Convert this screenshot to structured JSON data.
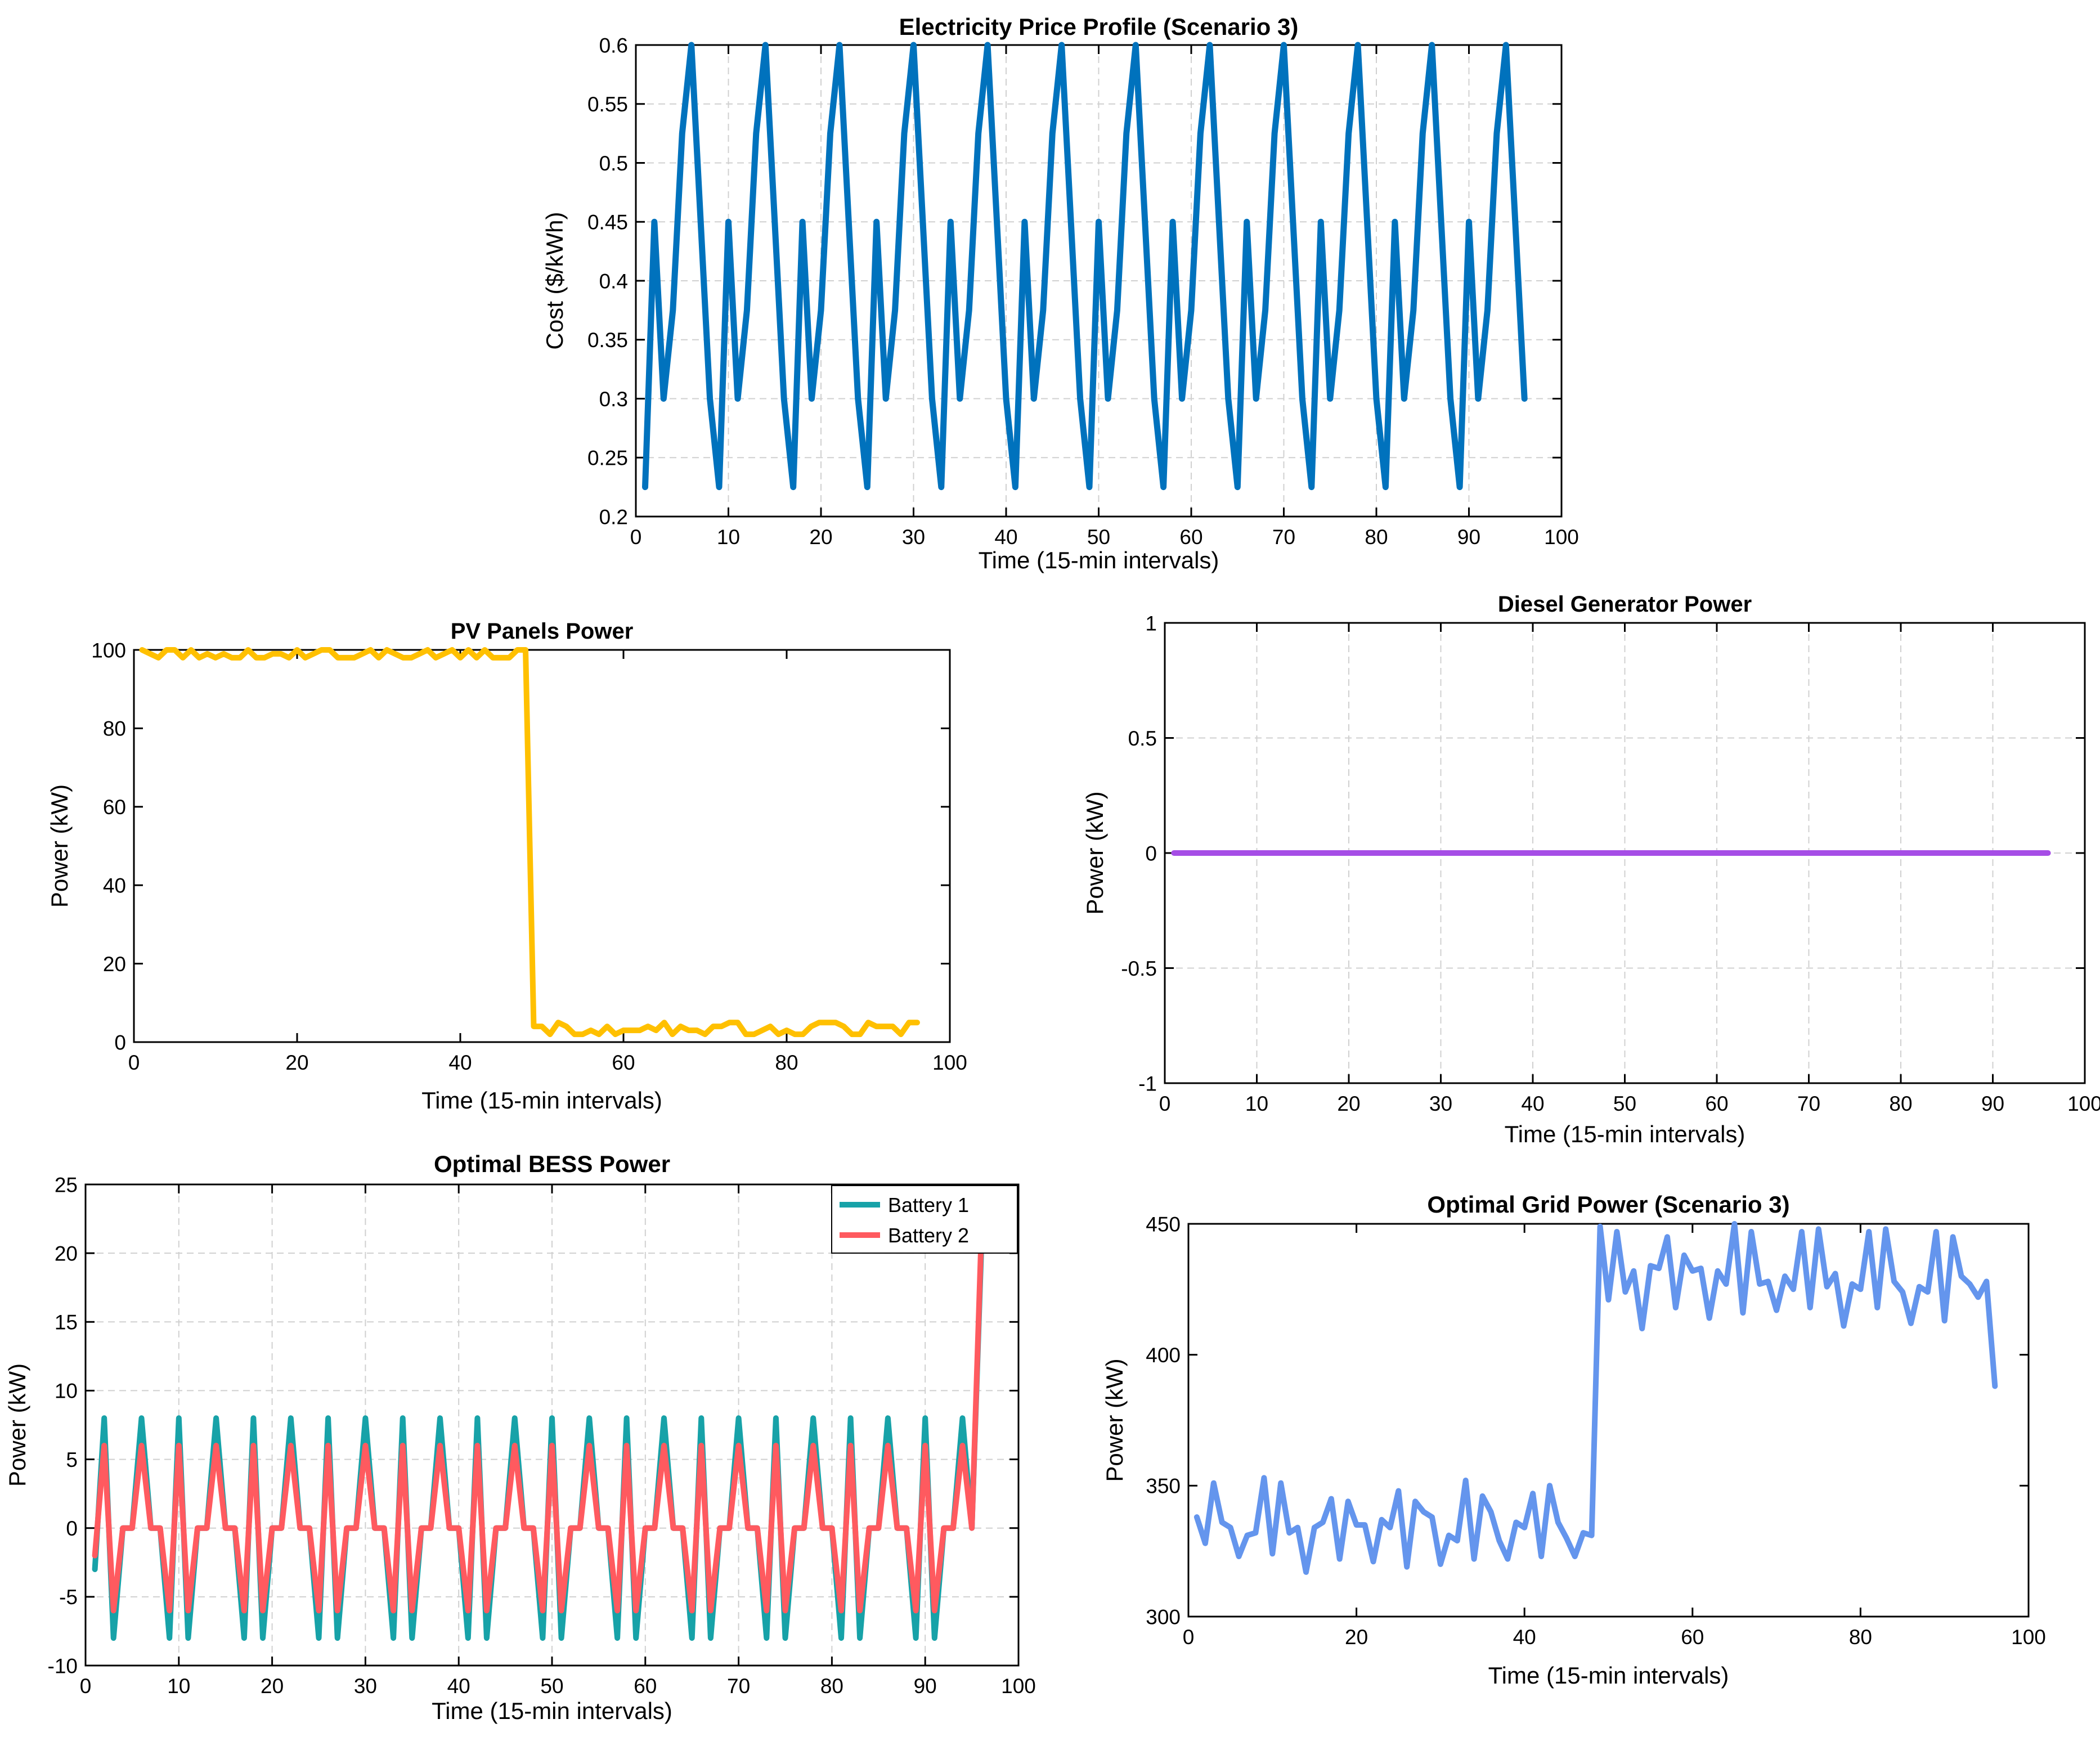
{
  "chart_data": [
    {
      "id": "price",
      "type": "line",
      "title": "Electricity Price Profile (Scenario 3)",
      "xlabel": "Time (15-min intervals)",
      "ylabel": "Cost ($/kWh)",
      "xlim": [
        0,
        100
      ],
      "ylim": [
        0.2,
        0.6
      ],
      "xticks": [
        0,
        10,
        20,
        30,
        40,
        50,
        60,
        70,
        80,
        90,
        100
      ],
      "yticks": [
        0.2,
        0.25,
        0.3,
        0.35,
        0.4,
        0.45,
        0.5,
        0.55,
        0.6
      ],
      "ytick_labels": [
        "0.2",
        "0.25",
        "0.3",
        "0.35",
        "0.4",
        "0.45",
        "0.5",
        "0.55",
        "0.6"
      ],
      "grid": true,
      "x": [
        1,
        2,
        3,
        4,
        5,
        6,
        7,
        8,
        9,
        10,
        11,
        12,
        13,
        14,
        15,
        16,
        17,
        18,
        19,
        20,
        21,
        22,
        23,
        24,
        25,
        26,
        27,
        28,
        29,
        30,
        31,
        32,
        33,
        34,
        35,
        36,
        37,
        38,
        39,
        40,
        41,
        42,
        43,
        44,
        45,
        46,
        47,
        48,
        49,
        50,
        51,
        52,
        53,
        54,
        55,
        56,
        57,
        58,
        59,
        60,
        61,
        62,
        63,
        64,
        65,
        66,
        67,
        68,
        69,
        70,
        71,
        72,
        73,
        74,
        75,
        76,
        77,
        78,
        79,
        80,
        81,
        82,
        83,
        84,
        85,
        86,
        87,
        88,
        89,
        90,
        91,
        92,
        93,
        94,
        95,
        96
      ],
      "series": [
        {
          "color": "#0072BD",
          "values": [
            0.225,
            0.45,
            0.3,
            0.375,
            0.525,
            0.6,
            0.45,
            0.3,
            0.225,
            0.45,
            0.3,
            0.375,
            0.525,
            0.6,
            0.45,
            0.3,
            0.225,
            0.45,
            0.3,
            0.375,
            0.525,
            0.6,
            0.45,
            0.3,
            0.225,
            0.45,
            0.3,
            0.375,
            0.525,
            0.6,
            0.45,
            0.3,
            0.225,
            0.45,
            0.3,
            0.375,
            0.525,
            0.6,
            0.45,
            0.3,
            0.225,
            0.45,
            0.3,
            0.375,
            0.525,
            0.6,
            0.45,
            0.3,
            0.225,
            0.45,
            0.3,
            0.375,
            0.525,
            0.6,
            0.45,
            0.3,
            0.225,
            0.45,
            0.3,
            0.375,
            0.525,
            0.6,
            0.45,
            0.3,
            0.225,
            0.45,
            0.3,
            0.375,
            0.525,
            0.6,
            0.45,
            0.3,
            0.225,
            0.45,
            0.3,
            0.375,
            0.525,
            0.6,
            0.45,
            0.3,
            0.225,
            0.45,
            0.3,
            0.375,
            0.525,
            0.6,
            0.45,
            0.3,
            0.225,
            0.45,
            0.3,
            0.375,
            0.525,
            0.6,
            0.45,
            0.3
          ]
        }
      ]
    },
    {
      "id": "pv",
      "type": "line",
      "title": "PV Panels Power",
      "xlabel": "Time (15-min intervals)",
      "ylabel": "Power (kW)",
      "xlim": [
        0,
        100
      ],
      "ylim": [
        0,
        100
      ],
      "xticks": [
        0,
        20,
        40,
        60,
        80,
        100
      ],
      "yticks": [
        0,
        20,
        40,
        60,
        80,
        100
      ],
      "grid": false,
      "x": [
        1,
        2,
        3,
        4,
        5,
        6,
        7,
        8,
        9,
        10,
        11,
        12,
        13,
        14,
        15,
        16,
        17,
        18,
        19,
        20,
        21,
        22,
        23,
        24,
        25,
        26,
        27,
        28,
        29,
        30,
        31,
        32,
        33,
        34,
        35,
        36,
        37,
        38,
        39,
        40,
        41,
        42,
        43,
        44,
        45,
        46,
        47,
        48,
        49,
        50,
        51,
        52,
        53,
        54,
        55,
        56,
        57,
        58,
        59,
        60,
        61,
        62,
        63,
        64,
        65,
        66,
        67,
        68,
        69,
        70,
        71,
        72,
        73,
        74,
        75,
        76,
        77,
        78,
        79,
        80,
        81,
        82,
        83,
        84,
        85,
        86,
        87,
        88,
        89,
        90,
        91,
        92,
        93,
        94,
        95,
        96
      ],
      "series": [
        {
          "color": "#FFC000",
          "values": [
            100,
            99,
            98,
            100,
            100,
            98,
            100,
            98,
            99,
            98,
            99,
            98,
            98,
            100,
            98,
            98,
            99,
            99,
            98,
            100,
            98,
            99,
            100,
            100,
            98,
            98,
            98,
            99,
            100,
            98,
            100,
            99,
            98,
            98,
            99,
            100,
            98,
            99,
            100,
            98,
            100,
            98,
            100,
            98,
            98,
            98,
            100,
            100,
            4,
            4,
            2,
            5,
            4,
            2,
            2,
            3,
            2,
            4,
            2,
            3,
            3,
            3,
            4,
            3,
            5,
            2,
            4,
            3,
            3,
            2,
            4,
            4,
            5,
            5,
            2,
            2,
            3,
            4,
            2,
            3,
            2,
            2,
            4,
            5,
            5,
            5,
            4,
            2,
            2,
            5,
            4,
            4,
            4,
            2,
            5,
            5
          ]
        }
      ]
    },
    {
      "id": "diesel",
      "type": "line",
      "title": "Diesel Generator Power",
      "xlabel": "Time (15-min intervals)",
      "ylabel": "Power (kW)",
      "xlim": [
        0,
        100
      ],
      "ylim": [
        -1,
        1
      ],
      "xticks": [
        0,
        10,
        20,
        30,
        40,
        50,
        60,
        70,
        80,
        90,
        100
      ],
      "yticks": [
        -1,
        -0.5,
        0,
        0.5,
        1
      ],
      "ytick_labels": [
        "-1",
        "-0.5",
        "0",
        "0.5",
        "1"
      ],
      "grid": true,
      "x": [
        1,
        96
      ],
      "series": [
        {
          "color": "#A64DE6",
          "values": [
            0,
            0
          ]
        }
      ]
    },
    {
      "id": "bess",
      "type": "line",
      "title": "Optimal BESS Power",
      "xlabel": "Time (15-min intervals)",
      "ylabel": "Power (kW)",
      "xlim": [
        0,
        100
      ],
      "ylim": [
        -10,
        25
      ],
      "xticks": [
        0,
        10,
        20,
        30,
        40,
        50,
        60,
        70,
        80,
        90,
        100
      ],
      "yticks": [
        -10,
        -5,
        0,
        5,
        10,
        15,
        20,
        25
      ],
      "ytick_labels": [
        "-10",
        "-5",
        "0",
        "5",
        "10",
        "15",
        "20",
        "25"
      ],
      "grid": true,
      "legend": "top-right",
      "x": [
        1,
        2,
        3,
        4,
        5,
        6,
        7,
        8,
        9,
        10,
        11,
        12,
        13,
        14,
        15,
        16,
        17,
        18,
        19,
        20,
        21,
        22,
        23,
        24,
        25,
        26,
        27,
        28,
        29,
        30,
        31,
        32,
        33,
        34,
        35,
        36,
        37,
        38,
        39,
        40,
        41,
        42,
        43,
        44,
        45,
        46,
        47,
        48,
        49,
        50,
        51,
        52,
        53,
        54,
        55,
        56,
        57,
        58,
        59,
        60,
        61,
        62,
        63,
        64,
        65,
        66,
        67,
        68,
        69,
        70,
        71,
        72,
        73,
        74,
        75,
        76,
        77,
        78,
        79,
        80,
        81,
        82,
        83,
        84,
        85,
        86,
        87,
        88,
        89,
        90,
        91,
        92,
        93,
        94,
        95,
        96
      ],
      "series": [
        {
          "name": "Battery 1",
          "color": "#17A2A8",
          "values": [
            -3,
            8,
            -8,
            0,
            0,
            8,
            0,
            0,
            -8,
            8,
            -8,
            0,
            0,
            8,
            0,
            0,
            -8,
            8,
            -8,
            0,
            0,
            8,
            0,
            0,
            -8,
            8,
            -8,
            0,
            0,
            8,
            0,
            0,
            -8,
            8,
            -8,
            0,
            0,
            8,
            0,
            0,
            -8,
            8,
            -8,
            0,
            0,
            8,
            0,
            0,
            -8,
            8,
            -8,
            0,
            0,
            8,
            0,
            0,
            -8,
            8,
            -8,
            0,
            0,
            8,
            0,
            0,
            -8,
            8,
            -8,
            0,
            0,
            8,
            0,
            0,
            -8,
            8,
            -8,
            0,
            0,
            8,
            0,
            0,
            -8,
            8,
            -8,
            0,
            0,
            8,
            0,
            0,
            -8,
            8,
            -8,
            0,
            0,
            8,
            0,
            20
          ]
        },
        {
          "name": "Battery 2",
          "color": "#FF5A5F",
          "values": [
            -2,
            6,
            -6,
            0,
            0,
            6,
            0,
            0,
            -6,
            6,
            -6,
            0,
            0,
            6,
            0,
            0,
            -6,
            6,
            -6,
            0,
            0,
            6,
            0,
            0,
            -6,
            6,
            -6,
            0,
            0,
            6,
            0,
            0,
            -6,
            6,
            -6,
            0,
            0,
            6,
            0,
            0,
            -6,
            6,
            -6,
            0,
            0,
            6,
            0,
            0,
            -6,
            6,
            -6,
            0,
            0,
            6,
            0,
            0,
            -6,
            6,
            -6,
            0,
            0,
            6,
            0,
            0,
            -6,
            6,
            -6,
            0,
            0,
            6,
            0,
            0,
            -6,
            6,
            -6,
            0,
            0,
            6,
            0,
            0,
            -6,
            6,
            -6,
            0,
            0,
            6,
            0,
            0,
            -6,
            6,
            -6,
            0,
            0,
            6,
            0,
            21
          ]
        }
      ]
    },
    {
      "id": "grid",
      "type": "line",
      "title": "Optimal Grid Power (Scenario 3)",
      "xlabel": "Time (15-min intervals)",
      "ylabel": "Power (kW)",
      "xlim": [
        0,
        100
      ],
      "ylim": [
        300,
        450
      ],
      "xticks": [
        0,
        20,
        40,
        60,
        80,
        100
      ],
      "yticks": [
        300,
        350,
        400,
        450
      ],
      "grid": false,
      "x": [
        1,
        2,
        3,
        4,
        5,
        6,
        7,
        8,
        9,
        10,
        11,
        12,
        13,
        14,
        15,
        16,
        17,
        18,
        19,
        20,
        21,
        22,
        23,
        24,
        25,
        26,
        27,
        28,
        29,
        30,
        31,
        32,
        33,
        34,
        35,
        36,
        37,
        38,
        39,
        40,
        41,
        42,
        43,
        44,
        45,
        46,
        47,
        48,
        49,
        50,
        51,
        52,
        53,
        54,
        55,
        56,
        57,
        58,
        59,
        60,
        61,
        62,
        63,
        64,
        65,
        66,
        67,
        68,
        69,
        70,
        71,
        72,
        73,
        74,
        75,
        76,
        77,
        78,
        79,
        80,
        81,
        82,
        83,
        84,
        85,
        86,
        87,
        88,
        89,
        90,
        91,
        92,
        93,
        94,
        95,
        96
      ],
      "series": [
        {
          "color": "#6495ED",
          "values": [
            338,
            328,
            351,
            336,
            334,
            323,
            331,
            332,
            353,
            324,
            351,
            332,
            334,
            317,
            334,
            336,
            345,
            322,
            344,
            335,
            335,
            321,
            337,
            334,
            348,
            319,
            344,
            340,
            338,
            320,
            331,
            329,
            352,
            322,
            346,
            340,
            329,
            322,
            336,
            334,
            347,
            323,
            350,
            336,
            330,
            323,
            332,
            331,
            449,
            421,
            447,
            424,
            432,
            410,
            434,
            433,
            445,
            418,
            438,
            432,
            433,
            414,
            432,
            427,
            450,
            416,
            447,
            427,
            428,
            417,
            430,
            425,
            447,
            418,
            448,
            426,
            431,
            411,
            427,
            425,
            447,
            418,
            448,
            428,
            424,
            412,
            426,
            424,
            447,
            413,
            445,
            430,
            427,
            422,
            428,
            388
          ]
        }
      ]
    }
  ]
}
